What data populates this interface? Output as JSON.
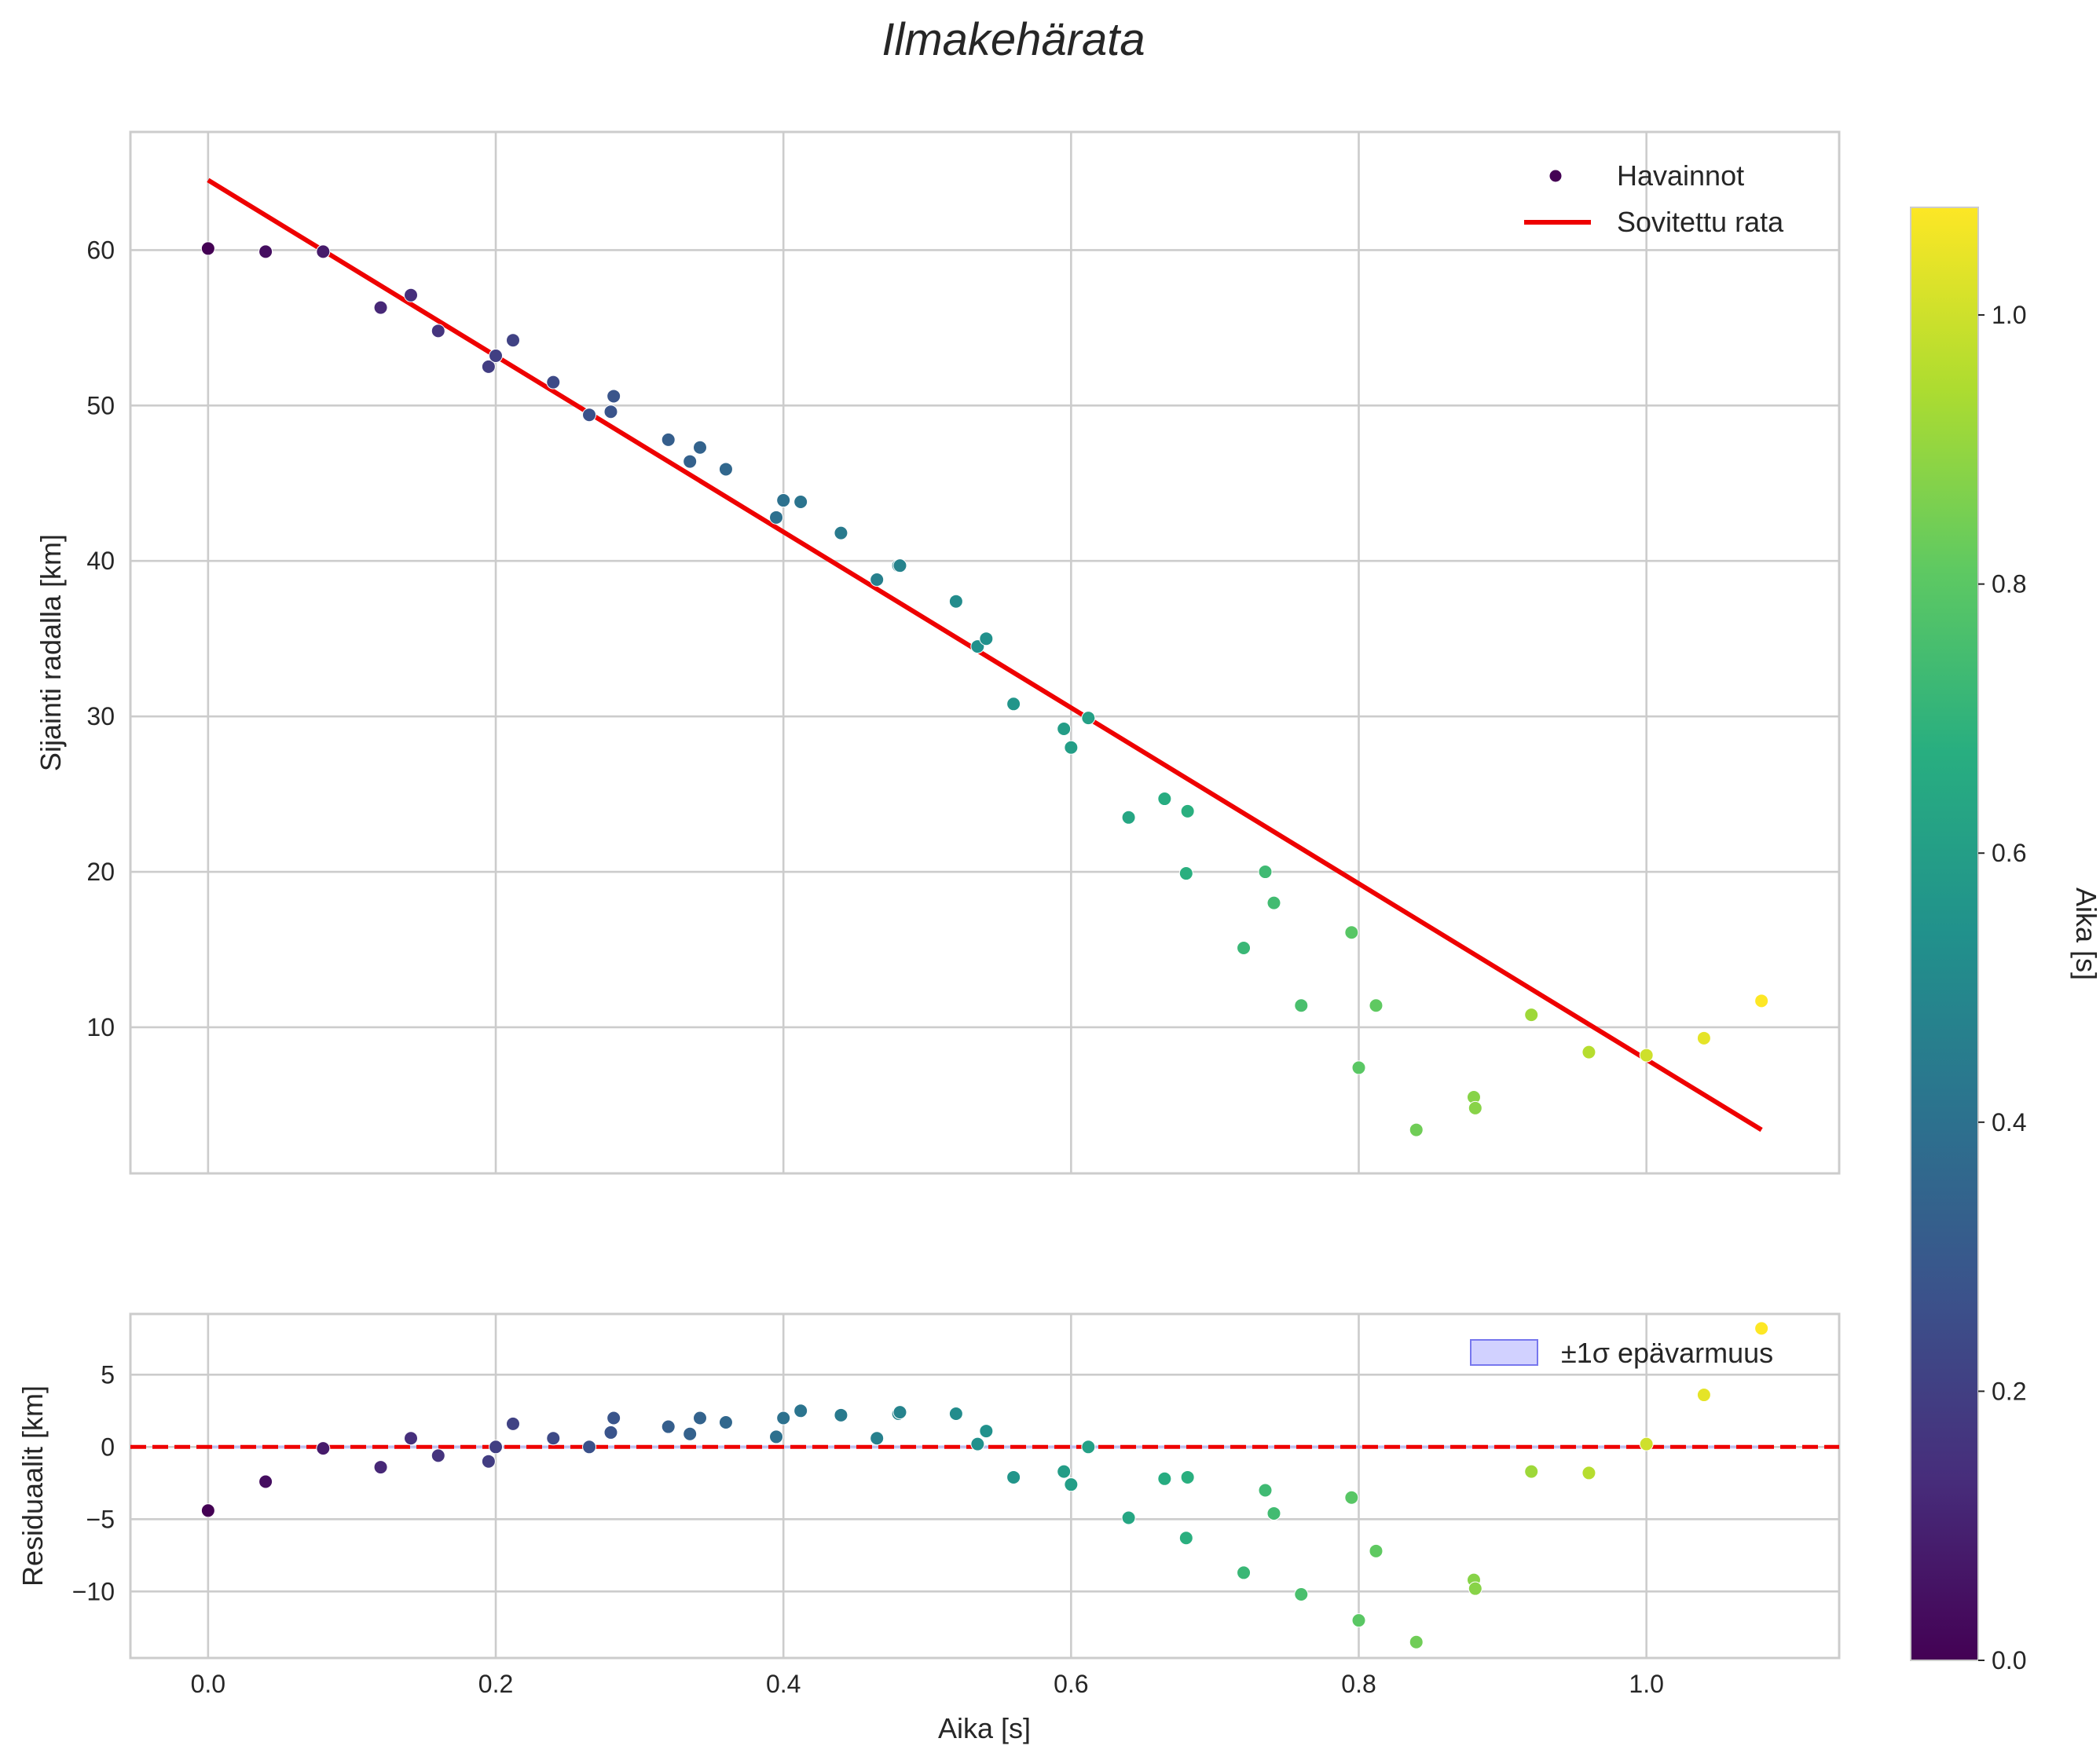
{
  "title": "Ilmakehärata",
  "colors": {
    "fit_line": "#ee0000",
    "band_fill": "#b2b2ff",
    "band_edge": "#7777ee",
    "grid": "#cccccc",
    "text": "#262626"
  },
  "legend": {
    "points_label": "Havainnot",
    "fit_label": "Sovitettu rata",
    "band_label": "±1σ epävarmuus"
  },
  "chart_data": [
    {
      "type": "scatter",
      "name": "main",
      "title": "Ilmakehärata",
      "xlabel": "",
      "ylabel": "Sijainti radalla [km]",
      "xlim": [
        -0.054,
        1.134
      ],
      "ylim": [
        0.6,
        67.6
      ],
      "xticks": [
        0.0,
        0.2,
        0.4,
        0.6,
        0.8,
        1.0
      ],
      "yticks": [
        10,
        20,
        30,
        40,
        50,
        60
      ],
      "grid": true,
      "legend_position": "top-right",
      "series": [
        {
          "name": "Havainnot",
          "kind": "scatter",
          "x": [
            0.0,
            0.04,
            0.08,
            0.12,
            0.141,
            0.16,
            0.195,
            0.2,
            0.212,
            0.24,
            0.265,
            0.28,
            0.282,
            0.32,
            0.335,
            0.342,
            0.36,
            0.395,
            0.4,
            0.412,
            0.44,
            0.465,
            0.48,
            0.481,
            0.52,
            0.535,
            0.541,
            0.56,
            0.595,
            0.6,
            0.612,
            0.64,
            0.665,
            0.68,
            0.681,
            0.72,
            0.735,
            0.741,
            0.76,
            0.795,
            0.8,
            0.812,
            0.84,
            0.88,
            0.881,
            0.92,
            0.96,
            1.0,
            1.04,
            1.08
          ],
          "y": [
            60.1,
            59.9,
            59.9,
            56.3,
            57.1,
            54.8,
            52.5,
            53.2,
            54.2,
            51.5,
            49.4,
            49.6,
            50.6,
            47.8,
            46.4,
            47.3,
            45.9,
            42.8,
            43.9,
            43.8,
            41.8,
            38.8,
            39.7,
            39.7,
            37.4,
            34.5,
            35.0,
            30.8,
            29.2,
            28.0,
            29.9,
            23.5,
            24.7,
            19.9,
            23.9,
            15.1,
            20.0,
            18.0,
            11.4,
            16.1,
            7.4,
            11.4,
            3.4,
            5.5,
            4.8,
            10.8,
            8.4,
            8.2,
            9.3,
            11.7
          ],
          "color_by": "x",
          "colormap": "viridis"
        },
        {
          "name": "Sovitettu rata",
          "kind": "line",
          "x": [
            0.0,
            1.08
          ],
          "y": [
            64.5,
            3.4
          ]
        }
      ]
    },
    {
      "type": "scatter",
      "name": "residuals",
      "title": "",
      "xlabel": "Aika [s]",
      "ylabel": "Residuaalit [km]",
      "xlim": [
        -0.054,
        1.134
      ],
      "ylim": [
        -14.6,
        9.2
      ],
      "xticks": [
        0.0,
        0.2,
        0.4,
        0.6,
        0.8,
        1.0
      ],
      "yticks": [
        -10,
        -5,
        0,
        5
      ],
      "grid": true,
      "legend_position": "top-right",
      "series": [
        {
          "name": "residuals",
          "kind": "scatter",
          "x": [
            0.0,
            0.04,
            0.08,
            0.12,
            0.141,
            0.16,
            0.195,
            0.2,
            0.212,
            0.24,
            0.265,
            0.28,
            0.282,
            0.32,
            0.335,
            0.342,
            0.36,
            0.395,
            0.4,
            0.412,
            0.44,
            0.465,
            0.48,
            0.481,
            0.52,
            0.535,
            0.541,
            0.56,
            0.595,
            0.6,
            0.612,
            0.64,
            0.665,
            0.68,
            0.681,
            0.72,
            0.735,
            0.741,
            0.76,
            0.795,
            0.8,
            0.812,
            0.84,
            0.88,
            0.881,
            0.92,
            0.96,
            1.0,
            1.04,
            1.08
          ],
          "y": [
            -4.4,
            -2.4,
            -0.1,
            -1.4,
            0.6,
            -0.6,
            -1.0,
            0.0,
            1.6,
            0.6,
            0.0,
            1.0,
            2.0,
            1.4,
            0.9,
            2.0,
            1.7,
            0.7,
            2.0,
            2.5,
            2.2,
            0.6,
            2.3,
            2.4,
            2.3,
            0.2,
            1.1,
            -2.1,
            -1.7,
            -2.6,
            0.0,
            -4.9,
            -2.2,
            -6.3,
            -2.1,
            -8.7,
            -3.0,
            -4.6,
            -10.2,
            -3.5,
            -12.0,
            -7.2,
            -13.5,
            -9.2,
            -9.8,
            -1.7,
            -1.8,
            0.2,
            3.6,
            8.2
          ],
          "color_by": "x",
          "colormap": "viridis"
        },
        {
          "name": "zero",
          "kind": "line",
          "style": "dashed",
          "x": [
            -0.054,
            1.134
          ],
          "y": [
            0,
            0
          ]
        },
        {
          "name": "±1σ epävarmuus",
          "kind": "band",
          "x": [
            0.0,
            1.08
          ],
          "lower": [
            -0.12,
            -0.12
          ],
          "upper": [
            0.12,
            0.12
          ]
        }
      ]
    }
  ],
  "colorbar": {
    "label": "Aika [s]",
    "colormap": "viridis",
    "range": [
      0.0,
      1.08
    ],
    "ticks": [
      0.0,
      0.2,
      0.4,
      0.6,
      0.8,
      1.0
    ]
  }
}
